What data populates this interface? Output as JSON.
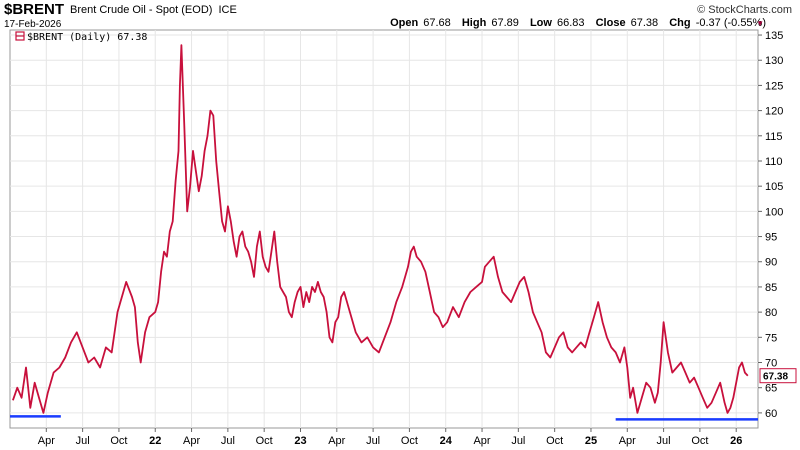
{
  "header": {
    "symbol": "$BRENT",
    "name": "Brent Crude Oil - Spot (EOD)",
    "exchange": "ICE",
    "date": "17-Feb-2026",
    "brand": "© StockCharts.com",
    "open_label": "Open",
    "open": "67.68",
    "high_label": "High",
    "high": "67.89",
    "low_label": "Low",
    "low": "66.83",
    "close_label": "Close",
    "close": "67.38",
    "chg_label": "Chg",
    "chg": "-0.37 (-0.55%)"
  },
  "colors": {
    "series": "#c8103c",
    "support": "#1a3cff",
    "grid": "#e6e6e6",
    "tag_bg": "#ffffff"
  },
  "chart_data": {
    "type": "line",
    "legend": "$BRENT (Daily) 67.38",
    "last_value_tag": "67.38",
    "ylim": [
      57,
      136
    ],
    "y_ticks": [
      60,
      65,
      70,
      75,
      80,
      85,
      90,
      95,
      100,
      105,
      110,
      115,
      120,
      125,
      130,
      135
    ],
    "x_ticks": [
      "Apr",
      "Jul",
      "Oct",
      "22",
      "Apr",
      "Jul",
      "Oct",
      "23",
      "Apr",
      "Jul",
      "Oct",
      "24",
      "Apr",
      "Jul",
      "Oct",
      "25",
      "Apr",
      "Jul",
      "Oct",
      "26"
    ],
    "x_tick_t": [
      2021.25,
      2021.5,
      2021.75,
      2022.0,
      2022.25,
      2022.5,
      2022.75,
      2023.0,
      2023.25,
      2023.5,
      2023.75,
      2024.0,
      2024.25,
      2024.5,
      2024.75,
      2025.0,
      2025.25,
      2025.5,
      2025.75,
      2026.0
    ],
    "x_range": [
      2021.0,
      2026.15
    ],
    "series": [
      {
        "t": [
          2021.02,
          2021.05,
          2021.08,
          2021.11,
          2021.14,
          2021.17,
          2021.2,
          2021.23,
          2021.26,
          2021.3,
          2021.34,
          2021.38,
          2021.42,
          2021.46,
          2021.5,
          2021.54,
          2021.58,
          2021.62,
          2021.66,
          2021.7,
          2021.74,
          2021.78,
          2021.8,
          2021.84,
          2021.86,
          2021.88,
          2021.9,
          2021.93,
          2021.96,
          2022.0,
          2022.02,
          2022.04,
          2022.06,
          2022.08,
          2022.1,
          2022.12,
          2022.14,
          2022.16,
          2022.17,
          2022.18,
          2022.2,
          2022.22,
          2022.24,
          2022.26,
          2022.28,
          2022.3,
          2022.32,
          2022.34,
          2022.36,
          2022.38,
          2022.4,
          2022.42,
          2022.44,
          2022.46,
          2022.48,
          2022.5,
          2022.52,
          2022.54,
          2022.56,
          2022.58,
          2022.6,
          2022.62,
          2022.64,
          2022.66,
          2022.68,
          2022.7,
          2022.72,
          2022.74,
          2022.76,
          2022.78,
          2022.8,
          2022.82,
          2022.84,
          2022.86,
          2022.88,
          2022.9,
          2022.92,
          2022.94,
          2022.96,
          2022.98,
          2023.0,
          2023.02,
          2023.04,
          2023.06,
          2023.08,
          2023.1,
          2023.12,
          2023.14,
          2023.16,
          2023.18,
          2023.2,
          2023.22,
          2023.24,
          2023.26,
          2023.28,
          2023.3,
          2023.34,
          2023.38,
          2023.42,
          2023.46,
          2023.5,
          2023.54,
          2023.58,
          2023.62,
          2023.66,
          2023.7,
          2023.72,
          2023.74,
          2023.76,
          2023.78,
          2023.8,
          2023.83,
          2023.86,
          2023.89,
          2023.92,
          2023.95,
          2023.98,
          2024.01,
          2024.05,
          2024.09,
          2024.13,
          2024.17,
          2024.21,
          2024.25,
          2024.27,
          2024.3,
          2024.33,
          2024.36,
          2024.39,
          2024.42,
          2024.45,
          2024.48,
          2024.51,
          2024.54,
          2024.57,
          2024.6,
          2024.63,
          2024.66,
          2024.69,
          2024.72,
          2024.75,
          2024.78,
          2024.81,
          2024.84,
          2024.87,
          2024.9,
          2024.93,
          2024.96,
          2024.99,
          2025.02,
          2025.05,
          2025.08,
          2025.11,
          2025.14,
          2025.17,
          2025.2,
          2025.23,
          2025.25,
          2025.27,
          2025.29,
          2025.32,
          2025.35,
          2025.38,
          2025.41,
          2025.44,
          2025.46,
          2025.48,
          2025.5,
          2025.53,
          2025.56,
          2025.59,
          2025.62,
          2025.65,
          2025.68,
          2025.71,
          2025.74,
          2025.77,
          2025.8,
          2025.83,
          2025.86,
          2025.89,
          2025.92,
          2025.94,
          2025.96,
          2025.98,
          2026.0,
          2026.02,
          2026.04,
          2026.06,
          2026.08,
          2026.1,
          2026.12,
          2026.13
        ],
        "v": [
          62.5,
          65,
          63,
          69,
          61,
          66,
          63,
          60,
          64,
          68,
          69,
          71,
          74,
          76,
          73,
          70,
          71,
          69,
          73,
          72,
          80,
          84,
          86,
          83,
          81,
          74,
          70,
          76,
          79,
          80,
          82,
          88,
          92,
          91,
          96,
          98,
          106,
          112,
          125,
          133,
          117,
          100,
          105,
          112,
          108,
          104,
          107,
          112,
          115,
          120,
          119,
          110,
          104,
          98,
          96,
          101,
          98,
          94,
          91,
          95,
          96,
          93,
          92,
          90,
          87,
          93,
          96,
          91,
          89,
          88,
          92,
          96,
          90,
          85,
          84,
          83,
          80,
          79,
          82,
          84,
          85,
          81,
          84,
          82,
          85,
          84,
          86,
          84,
          83,
          80,
          75,
          74,
          78,
          79,
          83,
          84,
          80,
          76,
          74,
          75,
          73,
          72,
          75,
          78,
          82,
          85,
          87,
          89,
          92,
          93,
          91,
          90,
          88,
          84,
          80,
          79,
          77,
          78,
          81,
          79,
          82,
          84,
          85,
          86,
          89,
          90,
          91,
          87,
          84,
          83,
          82,
          84,
          86,
          87,
          84,
          80,
          78,
          76,
          72,
          71,
          73,
          75,
          76,
          73,
          72,
          73,
          74,
          73,
          76,
          79,
          82,
          78,
          75,
          73,
          72,
          70,
          73,
          69,
          63,
          65,
          60,
          63,
          66,
          65,
          62,
          64,
          70,
          78,
          72,
          68,
          69,
          70,
          68,
          66,
          67,
          65,
          63,
          61,
          62,
          64,
          66,
          62,
          60,
          61,
          63,
          66,
          69,
          70,
          68,
          67.38
        ]
      }
    ],
    "support_lines": [
      {
        "t0": 2021.0,
        "t1": 2021.35,
        "v": 59.3
      },
      {
        "t0": 2025.17,
        "t1": 2026.15,
        "v": 58.7
      }
    ]
  }
}
